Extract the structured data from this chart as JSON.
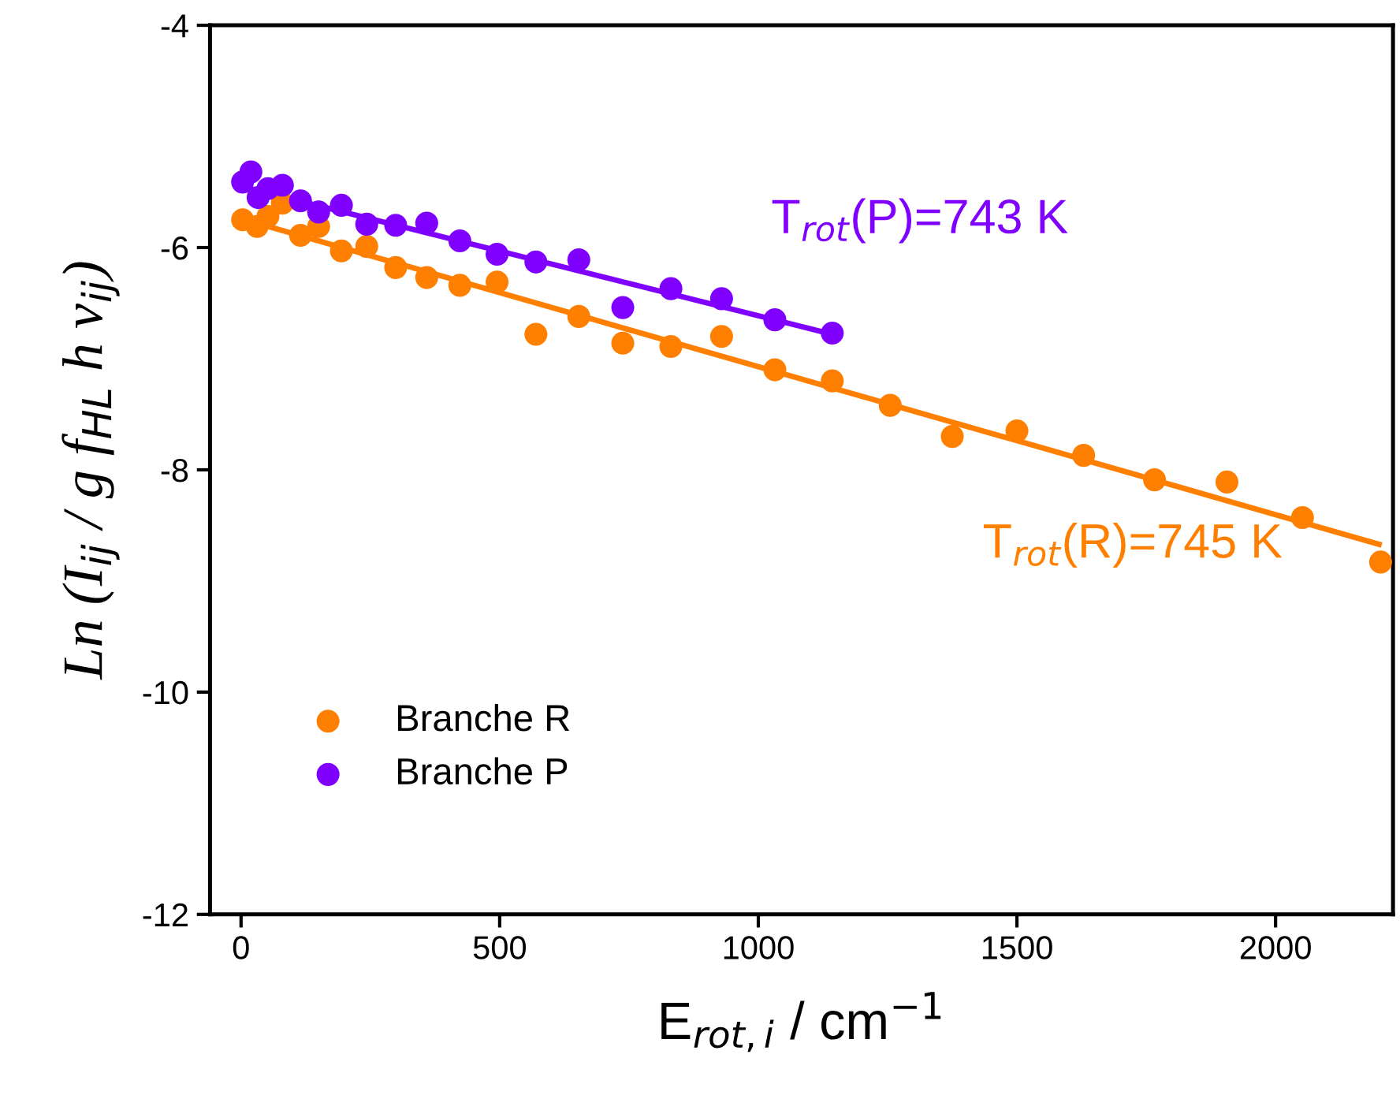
{
  "chart_data": {
    "type": "scatter",
    "xlabel": "E$_{rot,i}$ / cm$^{−1}$",
    "ylabel": "Ln (I$_{ij}$ / g f$_{HL}$ h ν$_{ij}$)",
    "xlim": [
      -60,
      2227
    ],
    "ylim": [
      -12,
      -4
    ],
    "xticks": [
      0,
      500,
      1000,
      1500,
      2000
    ],
    "yticks": [
      -12,
      -10,
      -8,
      -6,
      -4
    ],
    "grid": false,
    "legend": "bottom left",
    "series": [
      {
        "name": "Branche R",
        "color": "#ff7f00",
        "marker": "circle",
        "x": [
          3,
          31,
          52,
          80,
          115,
          150,
          194,
          243,
          299,
          359,
          423,
          495,
          570,
          653,
          738,
          831,
          929,
          1032,
          1143,
          1255,
          1375,
          1500,
          1629,
          1766,
          1906,
          2052,
          2203
        ],
        "values": [
          -5.75,
          -5.81,
          -5.72,
          -5.6,
          -5.89,
          -5.81,
          -6.03,
          -5.99,
          -6.18,
          -6.27,
          -6.34,
          -6.31,
          -6.78,
          -6.62,
          -6.86,
          -6.89,
          -6.8,
          -7.1,
          -7.2,
          -7.42,
          -7.7,
          -7.65,
          -7.87,
          -8.09,
          -8.11,
          -8.43,
          -8.83
        ]
      },
      {
        "name": "Branche P",
        "color": "#7f00ff",
        "marker": "circle",
        "x": [
          3,
          19,
          33,
          52,
          80,
          115,
          150,
          194,
          243,
          299,
          359,
          423,
          495,
          570,
          653,
          738,
          831,
          929,
          1032,
          1143
        ],
        "values": [
          -5.41,
          -5.32,
          -5.55,
          -5.47,
          -5.44,
          -5.58,
          -5.68,
          -5.62,
          -5.79,
          -5.8,
          -5.78,
          -5.94,
          -6.06,
          -6.13,
          -6.11,
          -6.54,
          -6.37,
          -6.46,
          -6.65,
          -6.77
        ]
      },
      {
        "type": "line",
        "color": "#ff7f00",
        "x": [
          0,
          2200
        ],
        "values": [
          -5.74,
          -8.67
        ]
      },
      {
        "type": "line",
        "color": "#7f00ff",
        "x": [
          0,
          1143
        ],
        "values": [
          -5.45,
          -6.78
        ]
      }
    ],
    "annotations": [
      "T$_{rot}$(R)=745 K",
      "T$_{rot}$(P)=743 K"
    ]
  }
}
